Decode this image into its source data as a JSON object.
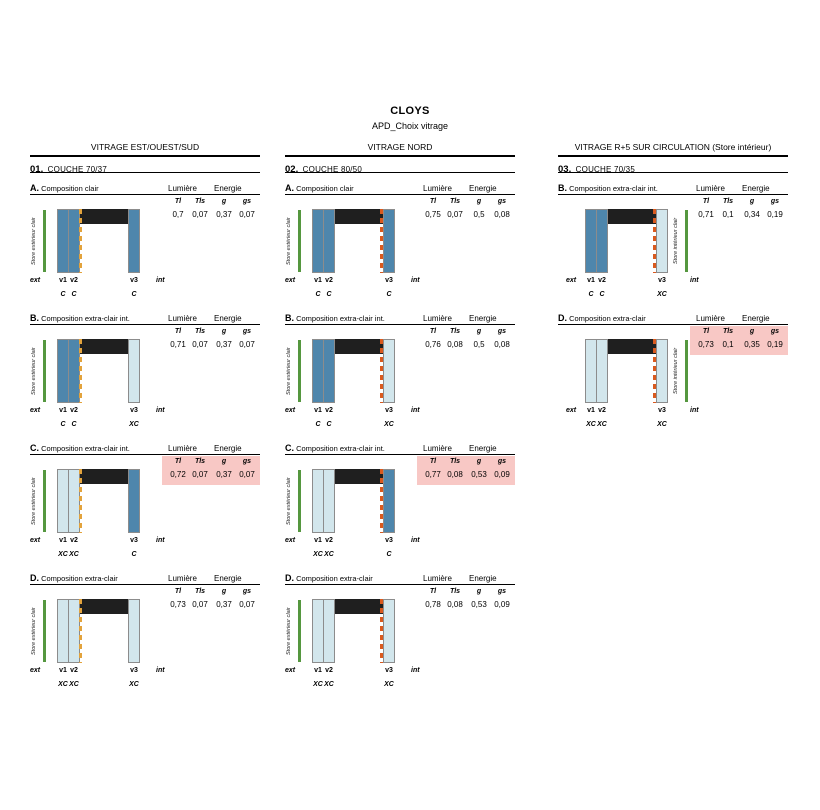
{
  "page": {
    "title": "CLOYS",
    "subtitle": "APD_Choix vitrage"
  },
  "metrics": {
    "lumiere": "Lumière",
    "energie": "Energie",
    "headers": [
      "Tl",
      "Tls",
      "g",
      "gs"
    ]
  },
  "sides": {
    "ext": "ext",
    "int": "int"
  },
  "colors": {
    "pane_clair": "#4E86AC",
    "pane_extra_clair": "#D2E6EC",
    "spacer_bar": "#1F1F1F",
    "store_line": "#55973F",
    "highlight": "#F8C8C5"
  },
  "columns": [
    {
      "header": "VITRAGE EST/OUEST/SUD",
      "section_number": "01.",
      "section_title": "COUCHE 70/37",
      "store_label": "Store extérieur clair",
      "store_side": "left",
      "coating": "v2-right",
      "dash_color": "#E3A33C",
      "rows": [
        {
          "letter": "A.",
          "title": "Composition clair",
          "highlight": false,
          "values": [
            "0,7",
            "0,07",
            "0,37",
            "0,07"
          ],
          "panes": [
            {
              "id": "v1",
              "type": "C"
            },
            {
              "id": "v2",
              "type": "C"
            },
            {
              "id": "v3",
              "type": "C"
            }
          ]
        },
        {
          "letter": "B.",
          "title": "Composition extra-clair int.",
          "highlight": false,
          "values": [
            "0,71",
            "0,07",
            "0,37",
            "0,07"
          ],
          "panes": [
            {
              "id": "v1",
              "type": "C"
            },
            {
              "id": "v2",
              "type": "C"
            },
            {
              "id": "v3",
              "type": "XC"
            }
          ]
        },
        {
          "letter": "C.",
          "title": "Composition extra-clair int.",
          "highlight": true,
          "values": [
            "0,72",
            "0,07",
            "0,37",
            "0,07"
          ],
          "panes": [
            {
              "id": "v1",
              "type": "XC"
            },
            {
              "id": "v2",
              "type": "XC"
            },
            {
              "id": "v3",
              "type": "C"
            }
          ]
        },
        {
          "letter": "D.",
          "title": "Composition extra-clair",
          "highlight": false,
          "values": [
            "0,73",
            "0,07",
            "0,37",
            "0,07"
          ],
          "panes": [
            {
              "id": "v1",
              "type": "XC"
            },
            {
              "id": "v2",
              "type": "XC"
            },
            {
              "id": "v3",
              "type": "XC"
            }
          ]
        }
      ]
    },
    {
      "header": "VITRAGE NORD",
      "section_number": "02.",
      "section_title": "COUCHE 80/50",
      "store_label": "Store extérieur clair",
      "store_side": "left",
      "coating": "v3-left",
      "dash_color": "#DA5A1E",
      "rows": [
        {
          "letter": "A.",
          "title": "Composition clair",
          "highlight": false,
          "values": [
            "0,75",
            "0,07",
            "0,5",
            "0,08"
          ],
          "panes": [
            {
              "id": "v1",
              "type": "C"
            },
            {
              "id": "v2",
              "type": "C"
            },
            {
              "id": "v3",
              "type": "C"
            }
          ]
        },
        {
          "letter": "B.",
          "title": "Composition extra-clair int.",
          "highlight": false,
          "values": [
            "0,76",
            "0,08",
            "0,5",
            "0,08"
          ],
          "panes": [
            {
              "id": "v1",
              "type": "C"
            },
            {
              "id": "v2",
              "type": "C"
            },
            {
              "id": "v3",
              "type": "XC"
            }
          ]
        },
        {
          "letter": "C.",
          "title": "Composition extra-clair int.",
          "highlight": true,
          "values": [
            "0,77",
            "0,08",
            "0,53",
            "0,09"
          ],
          "panes": [
            {
              "id": "v1",
              "type": "XC"
            },
            {
              "id": "v2",
              "type": "XC"
            },
            {
              "id": "v3",
              "type": "C"
            }
          ]
        },
        {
          "letter": "D.",
          "title": "Composition extra-clair",
          "highlight": false,
          "values": [
            "0,78",
            "0,08",
            "0,53",
            "0,09"
          ],
          "panes": [
            {
              "id": "v1",
              "type": "XC"
            },
            {
              "id": "v2",
              "type": "XC"
            },
            {
              "id": "v3",
              "type": "XC"
            }
          ]
        }
      ]
    },
    {
      "header": "VITRAGE R+5 SUR CIRCULATION (Store intérieur)",
      "section_number": "03.",
      "section_title": "COUCHE 70/35",
      "store_label": "Store intérieur clair",
      "store_side": "right",
      "coating": "v3-left",
      "dash_color": "#DA5A1E",
      "rows": [
        {
          "letter": "B.",
          "title": "Composition extra-clair int.",
          "highlight": false,
          "values": [
            "0,71",
            "0,1",
            "0,34",
            "0,19"
          ],
          "panes": [
            {
              "id": "v1",
              "type": "C"
            },
            {
              "id": "v2",
              "type": "C"
            },
            {
              "id": "v3",
              "type": "XC"
            }
          ]
        },
        {
          "letter": "D.",
          "title": "Composition extra-clair",
          "highlight": true,
          "values": [
            "0,73",
            "0,1",
            "0,35",
            "0,19"
          ],
          "panes": [
            {
              "id": "v1",
              "type": "XC"
            },
            {
              "id": "v2",
              "type": "XC"
            },
            {
              "id": "v3",
              "type": "XC"
            }
          ]
        }
      ]
    }
  ]
}
